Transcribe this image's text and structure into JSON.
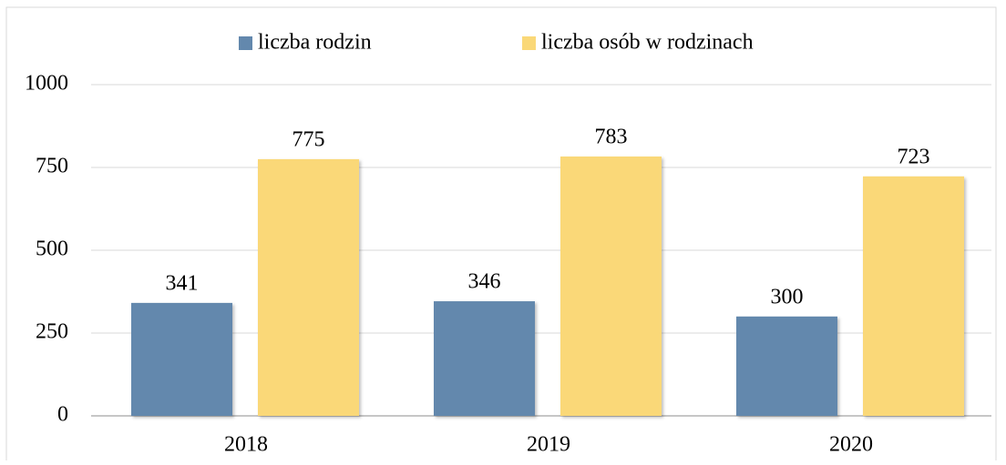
{
  "chart_data": {
    "type": "bar",
    "categories": [
      "2018",
      "2019",
      "2020"
    ],
    "series": [
      {
        "name": "liczba rodzin",
        "color": "#6388ad",
        "values": [
          341,
          346,
          300
        ]
      },
      {
        "name": "liczba osób w rodzinach",
        "color": "#fad878",
        "values": [
          775,
          783,
          723
        ]
      }
    ],
    "ylim": [
      0,
      1000
    ],
    "yticks": [
      0,
      250,
      500,
      750,
      1000
    ],
    "grid": true,
    "legend": "top"
  }
}
